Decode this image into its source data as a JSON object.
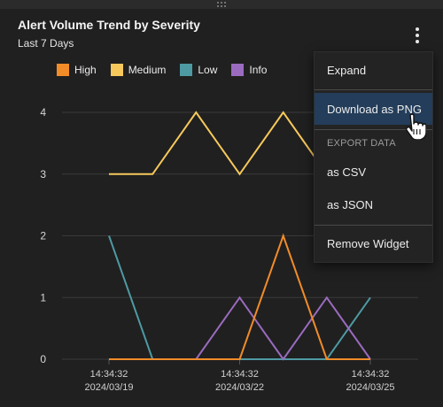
{
  "widget": {
    "title": "Alert Volume Trend by Severity",
    "subtitle": "Last 7 Days"
  },
  "menu": {
    "items": {
      "expand": "Expand",
      "download_png": "Download as PNG",
      "export_header": "EXPORT DATA",
      "csv": "as CSV",
      "json": "as JSON",
      "remove": "Remove Widget"
    },
    "active_item": "download_png"
  },
  "chart_data": {
    "type": "line",
    "x": [
      "2024/03/19",
      "2024/03/20",
      "2024/03/21",
      "2024/03/22",
      "2024/03/23",
      "2024/03/24",
      "2024/03/25"
    ],
    "x_tick_labels": [
      {
        "time": "14:34:32",
        "date": "2024/03/19"
      },
      {
        "time": "14:34:32",
        "date": "2024/03/22"
      },
      {
        "time": "14:34:32",
        "date": "2024/03/25"
      }
    ],
    "y_ticks": [
      0,
      1,
      2,
      3,
      4
    ],
    "ylim": [
      0,
      4
    ],
    "grid": true,
    "legend_position": "top-left",
    "series": [
      {
        "name": "High",
        "color": "#f28c28",
        "values": [
          0,
          0,
          0,
          0,
          2,
          0,
          0
        ]
      },
      {
        "name": "Medium",
        "color": "#f7c95c",
        "values": [
          3,
          3,
          4,
          3,
          4,
          3,
          null
        ]
      },
      {
        "name": "Low",
        "color": "#4e9aa3",
        "values": [
          2,
          0,
          0,
          0,
          0,
          0,
          1
        ]
      },
      {
        "name": "Info",
        "color": "#9b6bbf",
        "values": [
          0,
          0,
          0,
          1,
          0,
          1,
          0
        ]
      }
    ]
  }
}
